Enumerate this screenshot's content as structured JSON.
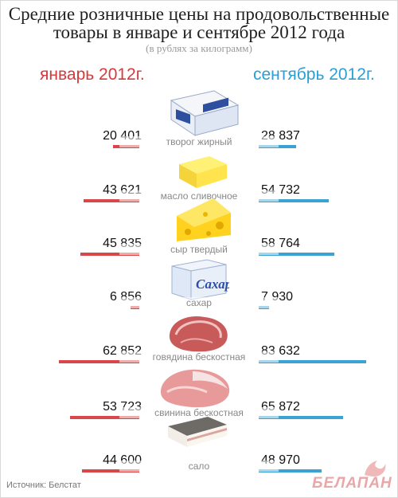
{
  "title_line1": "Средние розничные цены на продовольственные",
  "title_line2": "товары в январе и сентябре 2012 года",
  "subtitle": "(в рублях за килограмм)",
  "source": "Источник: Белстат",
  "logo": "БЕЛАПАН",
  "colors": {
    "january": "#d9474a",
    "september": "#3aa2d4",
    "logo": "#e9a7a8"
  },
  "chart_data": {
    "type": "bar",
    "orientation": "horizontal-mirrored",
    "categories": [
      "творог жирный",
      "масло сливочное",
      "сыр твердый",
      "сахар",
      "говядина бескостная",
      "свинина бескостная",
      "сало"
    ],
    "series": [
      {
        "name": "январь 2012г.",
        "labels": [
          "20 401",
          "43 621",
          "45 835",
          "6 856",
          "62 852",
          "53 723",
          "44 600"
        ],
        "values": [
          20401,
          43621,
          45835,
          6856,
          62852,
          53723,
          44600
        ]
      },
      {
        "name": "сентябрь 2012г.",
        "labels": [
          "28 837",
          "54 732",
          "58 764",
          "7 930",
          "83 632",
          "65 872",
          "48 970"
        ],
        "values": [
          28837,
          54732,
          58764,
          7930,
          83632,
          65872,
          48970
        ]
      }
    ],
    "icons": [
      "cottage-cheese-package-icon",
      "butter-block-icon",
      "cheese-wedge-icon",
      "sugar-box-icon",
      "beef-meat-icon",
      "pork-meat-icon",
      "salo-lard-icon"
    ]
  }
}
